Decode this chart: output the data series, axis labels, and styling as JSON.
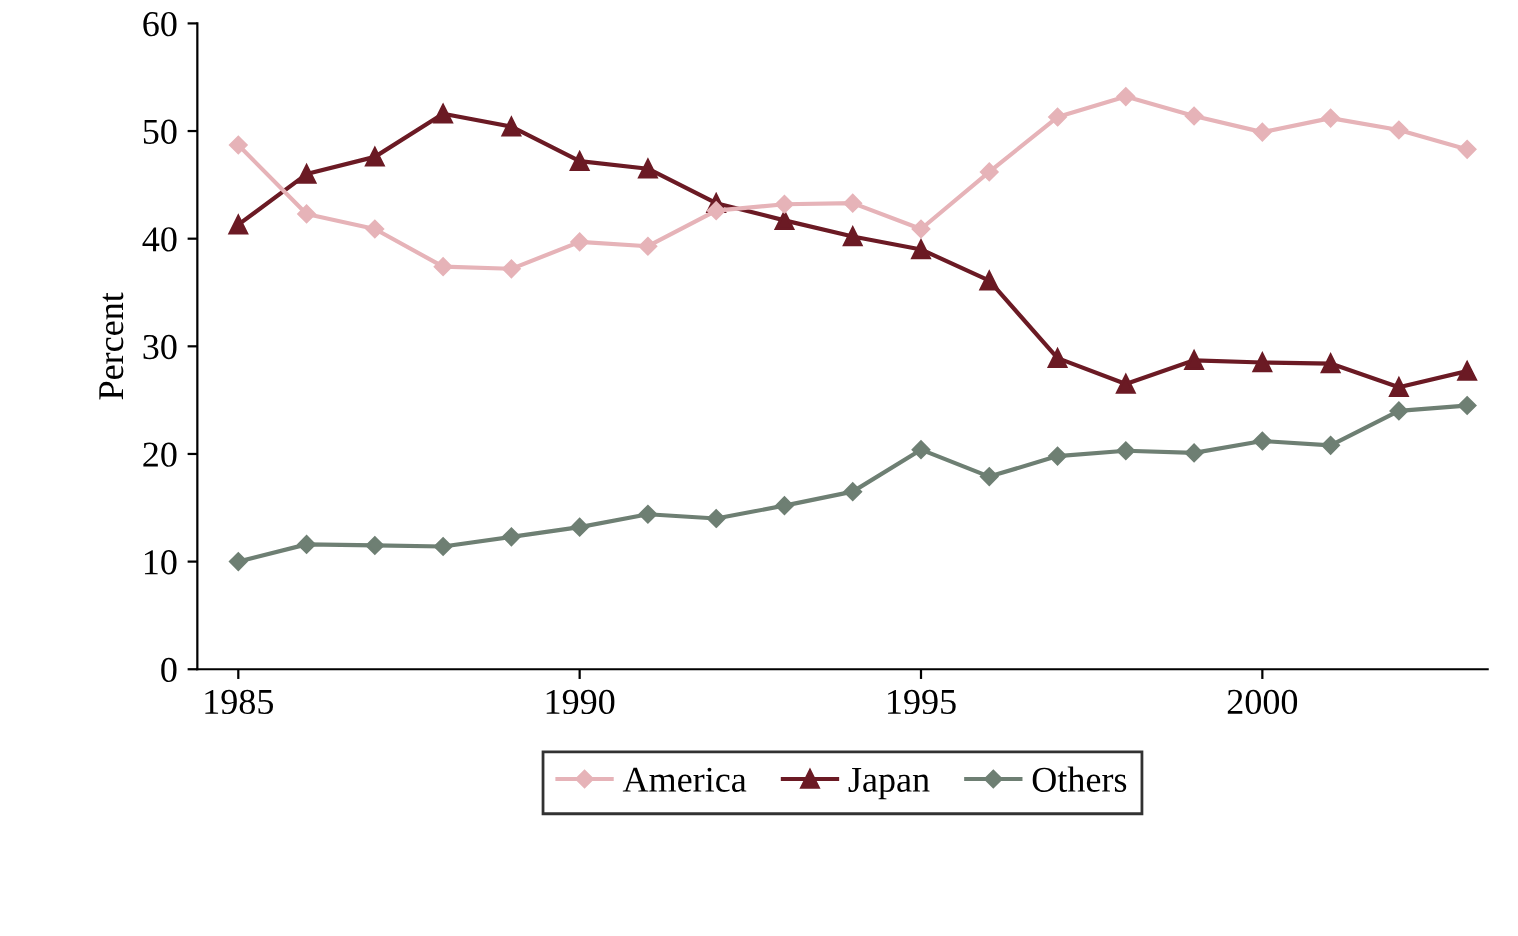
{
  "chart_data": {
    "type": "line",
    "ylabel": "Percent",
    "x": [
      1985,
      1986,
      1987,
      1988,
      1989,
      1990,
      1991,
      1992,
      1993,
      1994,
      1995,
      1996,
      1997,
      1998,
      1999,
      2000,
      2001,
      2002,
      2003
    ],
    "series": [
      {
        "name": "America",
        "color": "#e6b3b8",
        "marker": "diamond",
        "values": [
          48.7,
          42.3,
          40.9,
          37.4,
          37.2,
          39.7,
          39.3,
          42.6,
          43.2,
          43.3,
          40.9,
          46.2,
          51.3,
          53.2,
          51.4,
          49.9,
          51.2,
          50.1,
          48.3
        ]
      },
      {
        "name": "Japan",
        "color": "#6b1a24",
        "marker": "triangle",
        "values": [
          41.3,
          46.0,
          47.6,
          51.6,
          50.4,
          47.2,
          46.5,
          43.3,
          41.7,
          40.2,
          39.0,
          36.1,
          28.9,
          26.5,
          28.7,
          28.5,
          28.4,
          26.2,
          27.7
        ]
      },
      {
        "name": "Others",
        "color": "#6e7f73",
        "marker": "diamond",
        "values": [
          10.0,
          11.6,
          11.5,
          11.4,
          12.3,
          13.2,
          14.4,
          14.0,
          15.2,
          16.5,
          20.4,
          17.9,
          19.8,
          20.3,
          20.1,
          21.2,
          20.8,
          24.0,
          24.5
        ]
      }
    ],
    "xlim": [
      1984.4,
      2003.3
    ],
    "xticks": [
      1985,
      1990,
      1995,
      2000
    ],
    "ylim": [
      0,
      60
    ],
    "yticks": [
      0,
      10,
      20,
      30,
      40,
      50,
      60
    ],
    "grid": false,
    "legend": "bottom",
    "line_style": "solid"
  }
}
